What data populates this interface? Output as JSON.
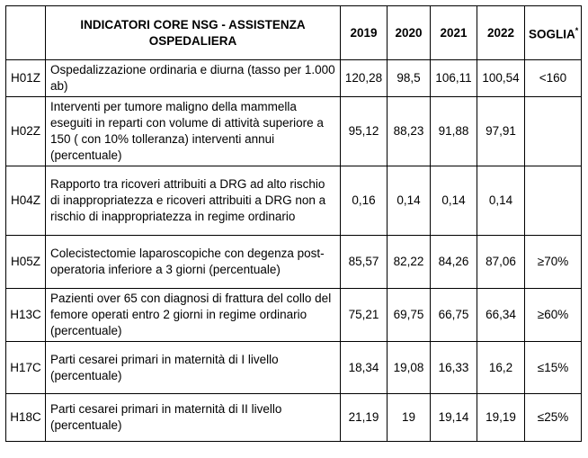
{
  "header": {
    "blank": "",
    "title": "INDICATORI CORE NSG - ASSISTENZA OSPEDALIERA",
    "y2019": "2019",
    "y2020": "2020",
    "y2021": "2021",
    "y2022": "2022",
    "soglia": "SOGLIA",
    "soglia_mark": "*"
  },
  "rows": [
    {
      "code": "H01Z",
      "desc": "Ospedalizzazione ordinaria e diurna (tasso per 1.000 ab)",
      "v2019": "120,28",
      "v2020": "98,5",
      "v2021": "106,11",
      "v2022": "100,54",
      "soglia": "<160"
    },
    {
      "code": "H02Z",
      "desc": "Interventi per tumore maligno della mammella eseguiti in reparti con volume di attività superiore a 150 ( con 10% tolleranza) interventi annui (percentuale)",
      "v2019": "95,12",
      "v2020": "88,23",
      "v2021": "91,88",
      "v2022": "97,91",
      "soglia": ""
    },
    {
      "code": "H04Z",
      "desc": "Rapporto tra ricoveri attribuiti a DRG ad alto rischio di inappropriatezza e ricoveri attribuiti a DRG non a rischio di inappropriatezza in regime ordinario",
      "v2019": "0,16",
      "v2020": "0,14",
      "v2021": "0,14",
      "v2022": "0,14",
      "soglia": ""
    },
    {
      "code": "H05Z",
      "desc": "Colecistectomie laparoscopiche con degenza post-operatoria inferiore a 3 giorni (percentuale)",
      "v2019": "85,57",
      "v2020": "82,22",
      "v2021": "84,26",
      "v2022": "87,06",
      "soglia": "≥70%"
    },
    {
      "code": "H13C",
      "desc": "Pazienti over 65 con diagnosi di frattura del collo del femore operati entro 2 giorni in regime ordinario (percentuale)",
      "v2019": "75,21",
      "v2020": "69,75",
      "v2021": "66,75",
      "v2022": "66,34",
      "soglia": "≥60%"
    },
    {
      "code": "H17C",
      "desc": "Parti cesarei primari in maternità di I livello (percentuale)",
      "v2019": "18,34",
      "v2020": "19,08",
      "v2021": "16,33",
      "v2022": "16,2",
      "soglia": "≤15%"
    },
    {
      "code": "H18C",
      "desc": "Parti cesarei primari in maternità di II livello (percentuale)",
      "v2019": "21,19",
      "v2020": "19",
      "v2021": "19,14",
      "v2022": "19,19",
      "soglia": "≤25%"
    }
  ]
}
